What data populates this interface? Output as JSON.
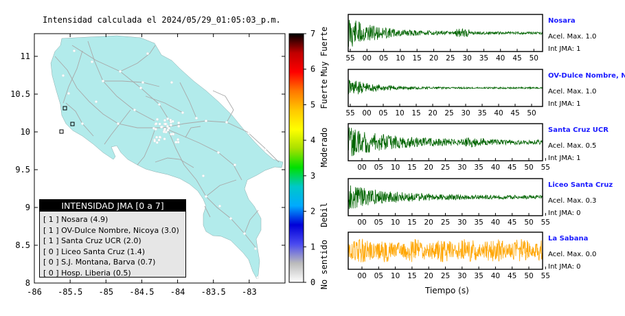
{
  "map": {
    "title": "Intensidad calculada el 2024/05/29_01:05:03_p.m.",
    "lon_ticks": [
      "-86",
      "-85.5",
      "-85",
      "-84.5",
      "-84",
      "-83.5",
      "-83"
    ],
    "lat_ticks": [
      "11",
      "10.5",
      "10",
      "9.5",
      "9",
      "8.5",
      "8"
    ],
    "colors": {
      "land": "#b2ebeb",
      "roads": "#a8a8a8",
      "stations": "#ffffff"
    }
  },
  "colorbar": {
    "tick_labels": [
      "0",
      "1",
      "2",
      "3",
      "4",
      "5",
      "6",
      "7"
    ],
    "category_labels": [
      "No sentido",
      "Debil",
      "Moderado",
      "Fuerte",
      "Muy Fuerte"
    ],
    "colors": [
      "#ffffff",
      "#bbbbbb",
      "#4a4af0",
      "#0000d8",
      "#00aaff",
      "#00c8c8",
      "#00e000",
      "#a8e000",
      "#ffff00",
      "#ffc800",
      "#ff7800",
      "#ff0000",
      "#c00000",
      "#000000"
    ]
  },
  "legend": {
    "title": "INTENSIDAD JMA [0 a 7]",
    "items": [
      "[ 1 ]  Nosara (4.9)",
      "[ 1 ]  OV-Dulce Nombre, Nicoya (3.0)",
      "[ 1 ]  Santa Cruz UCR (2.0)",
      "[ 0 ]  Liceo Santa Cruz (1.4)",
      "[ 0 ]  S.J. Montana, Barva (0.7)",
      "[ 0 ]  Hosp. Liberia (0.5)"
    ]
  },
  "chart_data": [
    {
      "type": "heatmap",
      "title": "Intensidad calculada el 2024/05/29_01:05:03_p.m.",
      "xlabel": "",
      "ylabel": "",
      "xlim": [
        -86,
        -82.5
      ],
      "ylim": [
        8,
        11.3
      ],
      "colorbar": {
        "min": 0,
        "max": 7,
        "categories": [
          "No sentido",
          "Debil",
          "Moderado",
          "Fuerte",
          "Muy Fuerte"
        ]
      },
      "stations": [
        {
          "name": "Nosara",
          "intensity": 4.9,
          "jma": 1
        },
        {
          "name": "OV-Dulce Nombre, Nicoya",
          "intensity": 3.0,
          "jma": 1
        },
        {
          "name": "Santa Cruz UCR",
          "intensity": 2.0,
          "jma": 1
        },
        {
          "name": "Liceo Santa Cruz",
          "intensity": 1.4,
          "jma": 0
        },
        {
          "name": "S.J. Montana, Barva",
          "intensity": 0.7,
          "jma": 0
        },
        {
          "name": "Hosp. Liberia",
          "intensity": 0.5,
          "jma": 0
        }
      ]
    },
    {
      "type": "line",
      "xlabel": "Tiempo (s)",
      "series": [
        {
          "name": "Nosara",
          "accel_label": "Acel. Max. 1.0",
          "jma_label": "Int JMA: 1",
          "color": "#006400",
          "amplitude": 1.0,
          "decay": "strong",
          "ticks": [
            "55",
            "00",
            "05",
            "10",
            "15",
            "20",
            "25",
            "30",
            "35",
            "40",
            "45",
            "50"
          ]
        },
        {
          "name": "OV-Dulce Nombre, Nicoya",
          "accel_label": "Acel. Max. 1.0",
          "jma_label": "Int JMA: 1",
          "color": "#006400",
          "amplitude": 0.55,
          "decay": "strong",
          "ticks": [
            "55",
            "00",
            "05",
            "10",
            "15",
            "20",
            "25",
            "30",
            "35",
            "40",
            "45",
            "50"
          ]
        },
        {
          "name": "Santa Cruz UCR",
          "accel_label": "Acel. Max. 0.5",
          "jma_label": "Int JMA: 1",
          "color": "#006400",
          "amplitude": 0.9,
          "decay": "medium",
          "ticks": [
            "00",
            "05",
            "10",
            "15",
            "20",
            "25",
            "30",
            "35",
            "40",
            "45",
            "50",
            "55"
          ]
        },
        {
          "name": "Liceo Santa Cruz",
          "accel_label": "Acel. Max. 0.3",
          "jma_label": "Int JMA: 0",
          "color": "#006400",
          "amplitude": 0.75,
          "decay": "medium",
          "ticks": [
            "00",
            "05",
            "10",
            "15",
            "20",
            "25",
            "30",
            "35",
            "40",
            "45",
            "50",
            "55"
          ]
        },
        {
          "name": "La Sabana",
          "accel_label": "Acel. Max. 0.0",
          "jma_label": "Int JMA: 0",
          "color": "#ffa500",
          "amplitude": 0.7,
          "decay": "none",
          "ticks": [
            "00",
            "05",
            "10",
            "15",
            "20",
            "25",
            "30",
            "35",
            "40",
            "45",
            "50",
            "55"
          ]
        }
      ]
    }
  ]
}
